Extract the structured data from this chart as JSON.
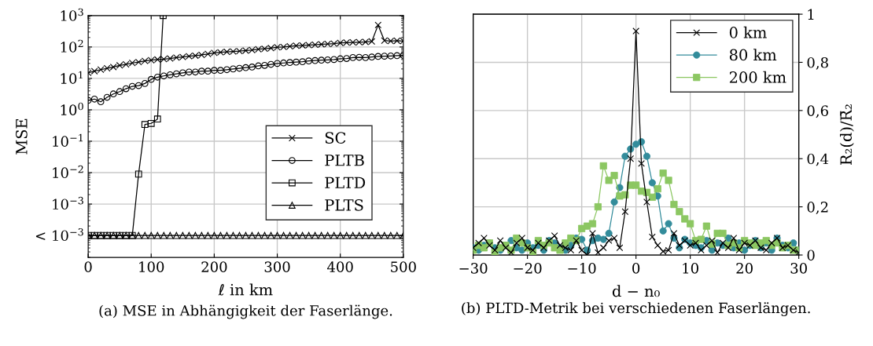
{
  "chart_data": [
    {
      "type": "line",
      "xlabel": "ℓ in km",
      "ylabel": "MSE",
      "log": "y",
      "x": [
        0,
        10,
        20,
        30,
        40,
        50,
        60,
        70,
        80,
        90,
        100,
        110,
        120,
        130,
        140,
        150,
        160,
        170,
        180,
        190,
        200,
        210,
        220,
        230,
        240,
        250,
        260,
        270,
        280,
        290,
        300,
        310,
        320,
        330,
        340,
        350,
        360,
        370,
        380,
        390,
        400,
        410,
        420,
        430,
        440,
        450,
        460,
        470,
        480,
        490,
        500
      ],
      "series": [
        {
          "name": "SC",
          "color": "#000000",
          "marker": "cross",
          "values": [
            15,
            17,
            19,
            21,
            23,
            26,
            28,
            31,
            33,
            36,
            38,
            40,
            41,
            43,
            46,
            48,
            51,
            53,
            56,
            60,
            65,
            68,
            70,
            72,
            74,
            77,
            80,
            85,
            88,
            92,
            98,
            100,
            105,
            110,
            112,
            115,
            118,
            122,
            125,
            128,
            135,
            138,
            140,
            142,
            145,
            150,
            500,
            160,
            155,
            158,
            155
          ]
        },
        {
          "name": "PLTB",
          "color": "#000000",
          "marker": "circle",
          "values": [
            2.0,
            2.2,
            1.8,
            2.5,
            3.2,
            3.8,
            4.7,
            5.6,
            5.9,
            6.9,
            9.3,
            11,
            12,
            13,
            14,
            15,
            16,
            16,
            17,
            17,
            18,
            18,
            19,
            20,
            21,
            22,
            23,
            25,
            26,
            28,
            30,
            31,
            32,
            33,
            34,
            36,
            37,
            38,
            39,
            40,
            42,
            43,
            46,
            47,
            46,
            48,
            50,
            51,
            52,
            53,
            54
          ]
        },
        {
          "name": "PLTD",
          "color": "#000000",
          "marker": "square",
          "x": [
            0,
            10,
            20,
            30,
            40,
            50,
            60,
            70,
            80,
            90,
            100,
            110,
            119
          ],
          "values": [
            0.0001,
            0.0001,
            0.0001,
            0.0001,
            0.0001,
            0.0001,
            0.0001,
            0.0001,
            0.009,
            0.34,
            0.37,
            0.51,
            1000
          ]
        },
        {
          "name": "PLTS",
          "color": "#000000",
          "marker": "triangle",
          "values": [
            0.0001,
            0.0001,
            0.0001,
            0.0001,
            0.0001,
            0.0001,
            0.0001,
            0.0001,
            0.0001,
            0.0001,
            0.0001,
            0.0001,
            0.0001,
            0.0001,
            0.0001,
            0.0001,
            0.0001,
            0.0001,
            0.0001,
            0.0001,
            0.0001,
            0.0001,
            0.0001,
            0.0001,
            0.0001,
            0.0001,
            0.0001,
            0.0001,
            0.0001,
            0.0001,
            0.0001,
            0.0001,
            0.0001,
            0.0001,
            0.0001,
            0.0001,
            0.0001,
            0.0001,
            0.0001,
            0.0001,
            0.0001,
            0.0001,
            0.0001,
            0.0001,
            0.0001,
            0.0001,
            0.0001,
            0.0001,
            0.0001,
            0.0001,
            0.0001
          ]
        }
      ],
      "xlim": [
        0,
        500
      ],
      "xticks": [
        0,
        100,
        200,
        300,
        400,
        500
      ],
      "ylim": [
        2e-05,
        1000
      ],
      "yticks": [
        {
          "value": 0.0001,
          "label": "< 10$^{−3}$"
        },
        {
          "value": 0.001,
          "label": "10$^{−3}$"
        },
        {
          "value": 0.01,
          "label": "10$^{−2}$"
        },
        {
          "value": 0.1,
          "label": "10$^{−1}$"
        },
        {
          "value": 1,
          "label": "10$^{0}$"
        },
        {
          "value": 10,
          "label": "10$^{1}$"
        },
        {
          "value": 100,
          "label": "10$^{2}$"
        },
        {
          "value": 1000,
          "label": "10$^{3}$"
        }
      ],
      "grid": true,
      "legend": "right",
      "annotations": [
        "(a) MSE in Abhängigkeit der Faserlänge."
      ]
    },
    {
      "type": "line",
      "xlabel": "d − n₀",
      "y2label": "R₂(d)/R̄₂",
      "x": [
        -30,
        -29,
        -28,
        -27,
        -26,
        -25,
        -24,
        -23,
        -22,
        -21,
        -20,
        -19,
        -18,
        -17,
        -16,
        -15,
        -14,
        -13,
        -12,
        -11,
        -10,
        -9,
        -8,
        -7,
        -6,
        -5,
        -4,
        -3,
        -2,
        -1,
        0,
        1,
        2,
        3,
        4,
        5,
        6,
        7,
        8,
        9,
        10,
        11,
        12,
        13,
        14,
        15,
        16,
        17,
        18,
        19,
        20,
        21,
        22,
        23,
        24,
        25,
        26,
        27,
        28,
        29,
        30
      ],
      "series": [
        {
          "name": "0 km",
          "color": "#000000",
          "marker": "cross",
          "axis": "y2",
          "values": [
            0.03,
            0.05,
            0.07,
            0.04,
            0.02,
            0.06,
            0.03,
            0.01,
            0.05,
            0.07,
            0.03,
            0.02,
            0.05,
            0.03,
            0.06,
            0.08,
            0.04,
            0.03,
            0.02,
            0.06,
            0.02,
            0.0,
            0.09,
            0.01,
            0.03,
            0.06,
            0.07,
            0.03,
            0.18,
            0.4,
            0.93,
            0.38,
            0.22,
            0.075,
            0.04,
            0.015,
            0.02,
            0.09,
            0.04,
            0.06,
            0.04,
            0.05,
            0.02,
            0.04,
            0.06,
            0.01,
            0.05,
            0.03,
            0.07,
            0.02,
            0.05,
            0.04,
            0.06,
            0.03,
            0.02,
            0.05,
            0.07,
            0.03,
            0.04,
            0.02,
            0.01
          ]
        },
        {
          "name": "80 km",
          "color": "#338c9b",
          "marker": "circle",
          "axis": "y2",
          "values": [
            0.03,
            0.02,
            0.04,
            0.05,
            0.03,
            0.02,
            0.04,
            0.06,
            0.03,
            0.02,
            0.05,
            0.03,
            0.04,
            0.02,
            0.06,
            0.05,
            0.03,
            0.02,
            0.04,
            0.07,
            0.065,
            0.02,
            0.06,
            0.07,
            0.065,
            0.09,
            0.22,
            0.28,
            0.41,
            0.44,
            0.46,
            0.47,
            0.41,
            0.3,
            0.245,
            0.1,
            0.13,
            0.07,
            0.03,
            0.065,
            0.05,
            0.04,
            0.03,
            0.06,
            0.02,
            0.05,
            0.04,
            0.07,
            0.03,
            0.05,
            0.02,
            0.04,
            0.06,
            0.03,
            0.05,
            0.02,
            0.07,
            0.04,
            0.03,
            0.05,
            0.02
          ]
        },
        {
          "name": "200 km",
          "color": "#8cc762",
          "marker": "square",
          "axis": "y2",
          "values": [
            0.02,
            0.04,
            0.03,
            0.05,
            0.01,
            0.03,
            0.04,
            0.02,
            0.07,
            0.05,
            0.03,
            0.01,
            0.06,
            0.04,
            0.05,
            0.03,
            0.02,
            0.05,
            0.07,
            0.06,
            0.11,
            0.12,
            0.13,
            0.2,
            0.37,
            0.31,
            0.33,
            0.245,
            0.25,
            0.29,
            0.29,
            0.265,
            0.26,
            0.24,
            0.275,
            0.34,
            0.31,
            0.21,
            0.18,
            0.15,
            0.13,
            0.06,
            0.065,
            0.12,
            0.045,
            0.09,
            0.09,
            0.04,
            0.05,
            0.03,
            0.06,
            0.05,
            0.04,
            0.05,
            0.06,
            0.04,
            0.05,
            0.03,
            0.04,
            0.02,
            0.02
          ]
        }
      ],
      "xlim": [
        -30,
        30
      ],
      "xticks": [
        {
          "value": -30,
          "label": "−30"
        },
        {
          "value": -20,
          "label": "−20"
        },
        {
          "value": -10,
          "label": "−10"
        },
        0,
        10,
        20,
        30
      ],
      "y2lim": [
        0,
        1
      ],
      "y2ticks": [
        0,
        {
          "value": 0.2,
          "label": "0,2"
        },
        {
          "value": 0.4,
          "label": "0,4"
        },
        {
          "value": 0.6,
          "label": "0,6"
        },
        {
          "value": 0.8,
          "label": "0,8"
        },
        1
      ],
      "grid": true,
      "legend": "top right",
      "annotations": [
        "(b) PLTD-Metrik bei verschiedenen Faserlängen."
      ]
    }
  ]
}
